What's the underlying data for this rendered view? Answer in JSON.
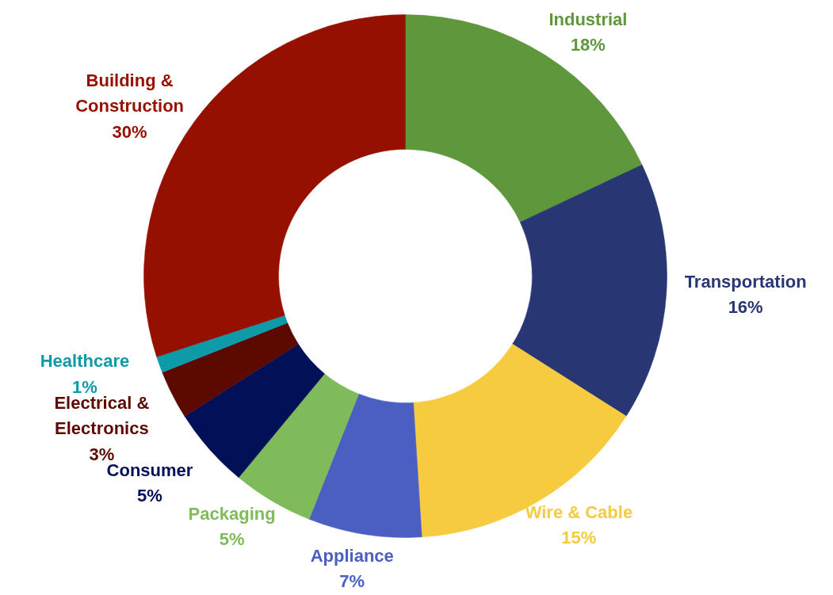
{
  "chart_data": {
    "type": "donut",
    "categories": [
      "Industrial",
      "Transportation",
      "Wire & Cable",
      "Appliance",
      "Packaging",
      "Consumer",
      "Electrical &\nElectronics",
      "Healthcare",
      "Building &\nConstruction"
    ],
    "values": [
      18,
      16,
      15,
      7,
      5,
      5,
      3,
      1,
      30
    ],
    "value_labels": [
      "18%",
      "16%",
      "15%",
      "7%",
      "5%",
      "5%",
      "3%",
      "1%",
      "30%"
    ],
    "colors": [
      "#5e973c",
      "#283673",
      "#f6cb3f",
      "#4a5fc1",
      "#7fbb5a",
      "#021058",
      "#5c0a00",
      "#0e9ba9",
      "#961000"
    ]
  }
}
